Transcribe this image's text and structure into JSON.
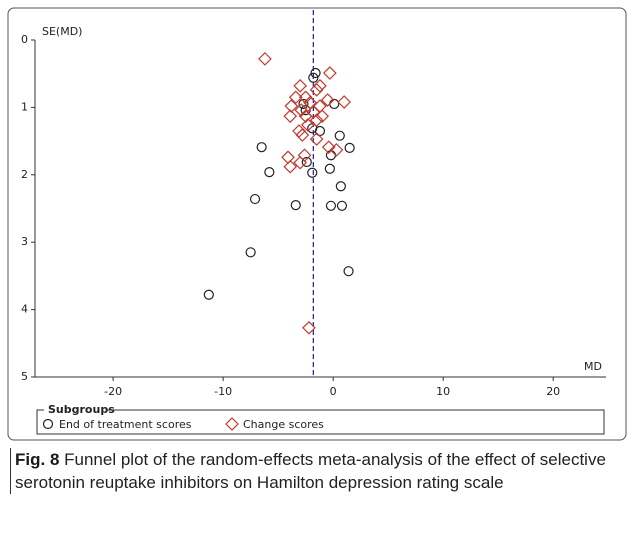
{
  "chart_data": {
    "type": "scatter",
    "x_label": "MD",
    "y_label": "SE(MD)",
    "xlim": [
      -27.1,
      24.8
    ],
    "ylim": [
      0,
      5
    ],
    "y_inverted": true,
    "xticks": [
      -20,
      -10,
      0,
      10,
      20
    ],
    "yticks": [
      0,
      1,
      2,
      3,
      4,
      5
    ],
    "summary_md": -1.8,
    "summary_color": "#2b2ba8",
    "legend_title": "Subgroups",
    "series": [
      {
        "name": "End of treatment scores",
        "color": "#222222",
        "marker": "circle",
        "x": [
          -1.6,
          -1.8,
          -2.7,
          -2.5,
          0.1,
          -1.9,
          -1.2,
          0.6,
          -6.5,
          1.5,
          -0.2,
          -2.4,
          -5.8,
          -1.9,
          -0.3,
          0.7,
          -7.1,
          -3.4,
          -0.2,
          0.8,
          -7.5,
          1.4,
          -11.3
        ],
        "values": [
          0.49,
          0.56,
          0.95,
          1.04,
          0.95,
          1.31,
          1.35,
          1.42,
          1.59,
          1.6,
          1.71,
          1.81,
          1.96,
          1.97,
          1.91,
          2.17,
          2.36,
          2.45,
          2.46,
          2.46,
          3.15,
          3.43,
          3.78
        ]
      },
      {
        "name": "Change scores",
        "color": "#c0392b",
        "marker": "diamond",
        "x": [
          -6.2,
          -0.3,
          -3.0,
          -1.2,
          -1.5,
          -3.4,
          -2.5,
          1.0,
          -0.5,
          -2.1,
          -3.8,
          -1.2,
          -2.9,
          -1.8,
          -3.9,
          -2.5,
          -1.0,
          -1.5,
          -2.3,
          -3.1,
          -2.8,
          -1.5,
          -0.4,
          0.3,
          -4.1,
          -2.6,
          -3.9,
          -3.0,
          -2.2
        ],
        "values": [
          0.28,
          0.49,
          0.68,
          0.68,
          0.74,
          0.85,
          0.85,
          0.92,
          0.89,
          0.93,
          0.98,
          0.98,
          1.04,
          1.07,
          1.13,
          1.13,
          1.13,
          1.19,
          1.26,
          1.35,
          1.41,
          1.47,
          1.59,
          1.63,
          1.74,
          1.71,
          1.88,
          1.82,
          4.27
        ]
      }
    ]
  },
  "caption": {
    "label": "Fig. 8",
    "text": "Funnel plot of the random-effects meta-analysis of the effect of selective serotonin reuptake inhibitors on Hamilton depression rating scale"
  }
}
